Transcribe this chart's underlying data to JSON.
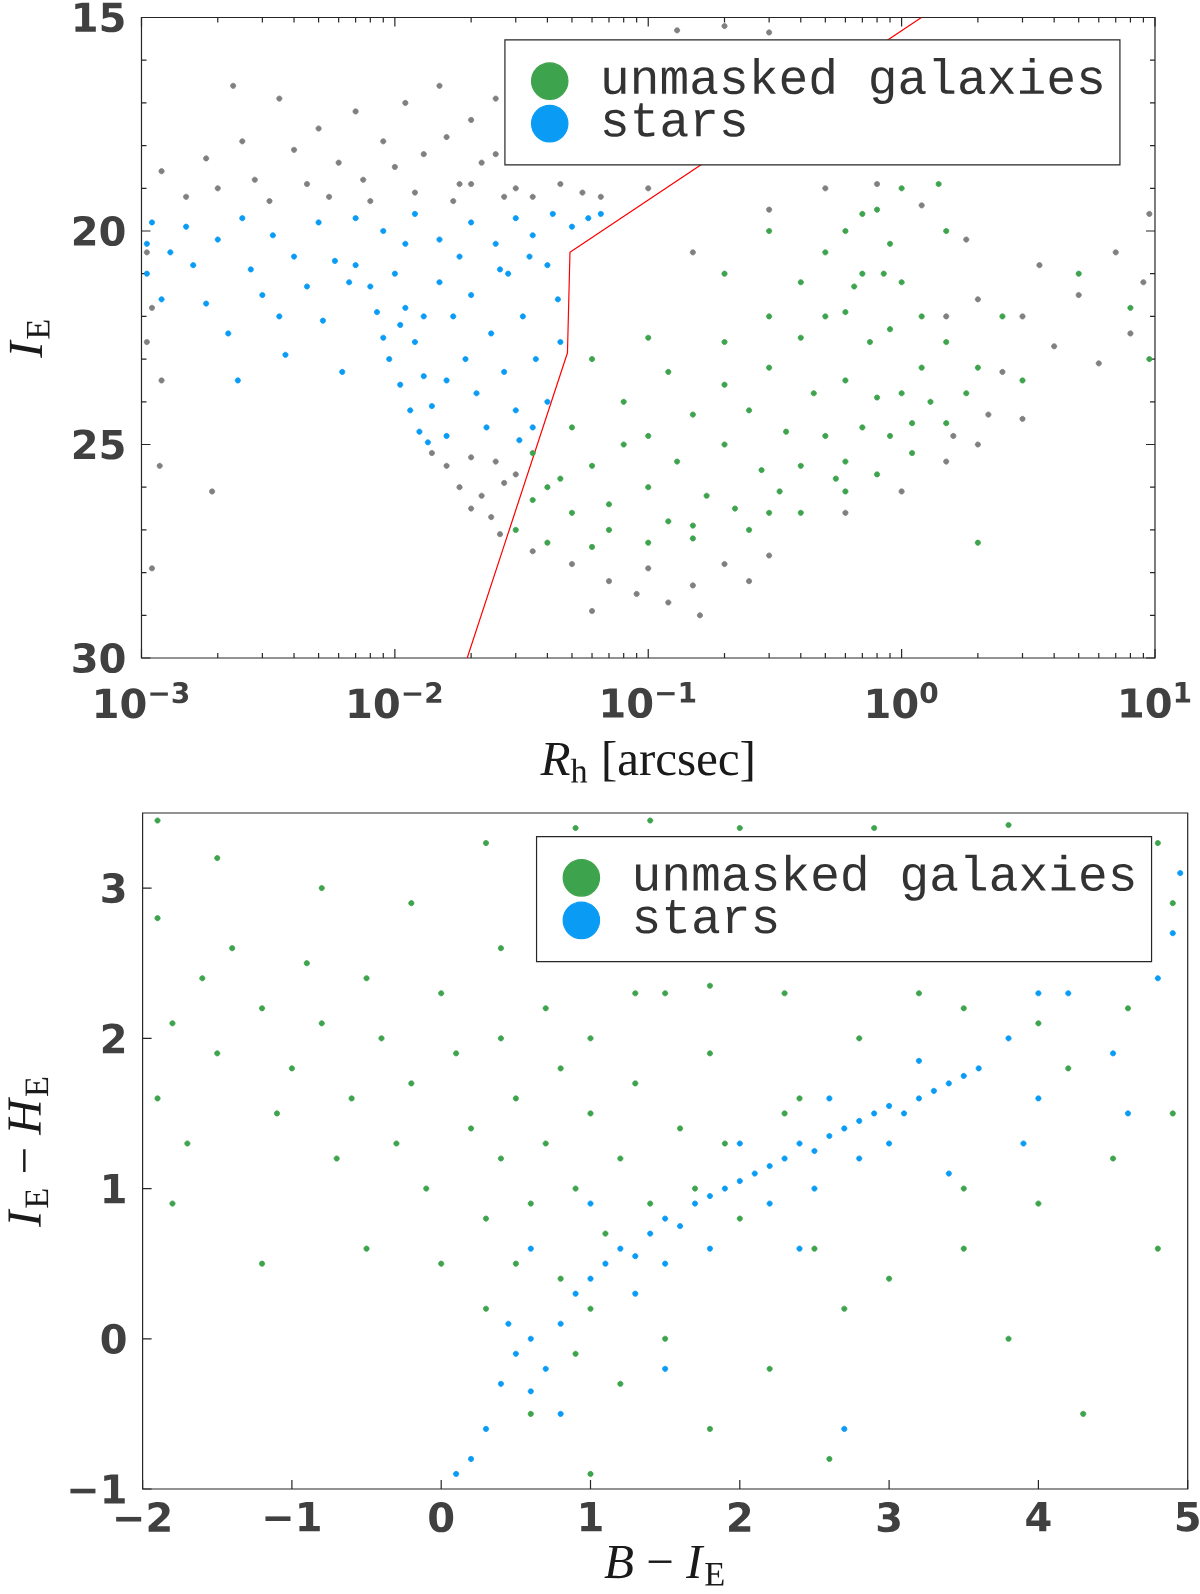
{
  "chart_data": [
    {
      "type": "scatter",
      "xlabel": "*R*$_{h}$ [arcsec]",
      "ylabel": "*I*$_{E}$",
      "log": "x",
      "xlim": [
        0.001,
        10
      ],
      "ylim": [
        30,
        15
      ],
      "xticks": [
        {
          "value": 0.001,
          "label": "10$^{−3}$"
        },
        {
          "value": 0.01,
          "label": "10$^{−2}$"
        },
        {
          "value": 0.1,
          "label": "10$^{−1}$"
        },
        {
          "value": 1,
          "label": "10$^{0}$"
        },
        {
          "value": 10,
          "label": "10$^{1}$"
        }
      ],
      "yticks": [
        15,
        20,
        25,
        30
      ],
      "legend": "top right",
      "series": [
        {
          "color": "#808080",
          "marker": "circle",
          "x": [
            0.0012,
            0.0015,
            0.0018,
            0.002,
            0.0023,
            0.0025,
            0.0028,
            0.0032,
            0.0035,
            0.004,
            0.0045,
            0.005,
            0.0055,
            0.006,
            0.007,
            0.0075,
            0.008,
            0.009,
            0.01,
            0.011,
            0.012,
            0.013,
            0.015,
            0.016,
            0.017,
            0.018,
            0.02,
            0.02,
            0.022,
            0.025,
            0.025,
            0.027,
            0.03,
            0.035,
            0.045,
            0.055,
            0.065,
            0.13,
            0.2,
            0.3,
            0.00105,
            0.0011,
            0.00105,
            0.0012,
            0.00118,
            0.0019,
            0.0011,
            0.014,
            0.016,
            0.02,
            0.025,
            0.018,
            0.022,
            0.027,
            0.03,
            0.024,
            0.026,
            0.02,
            0.035,
            0.05,
            0.06,
            0.07,
            0.09,
            0.1,
            0.12,
            0.15,
            0.16,
            0.2,
            0.25,
            0.3,
            1.5,
            2,
            2.5,
            3,
            3.5,
            4,
            5,
            6,
            7,
            8,
            9,
            2.2,
            1.8,
            1.6,
            3,
            9.5,
            1.2,
            0.3,
            0.5,
            0.15,
            0.1,
            0.8,
            1.5,
            2.0,
            1.0,
            0.6
          ],
          "values": [
            18.6,
            19.2,
            18.3,
            19.0,
            16.6,
            17.9,
            18.8,
            19.3,
            16.9,
            18.1,
            18.9,
            17.6,
            19.2,
            18.4,
            17.2,
            18.8,
            19.3,
            17.9,
            18.5,
            17.0,
            19.1,
            18.2,
            16.6,
            17.8,
            19.3,
            18.9,
            17.4,
            18.9,
            18.4,
            16.9,
            18.2,
            19.2,
            19.0,
            19.2,
            18.9,
            19.1,
            19.2,
            15.3,
            15.2,
            15.35,
            20.5,
            21.8,
            22.6,
            23.5,
            25.5,
            26.1,
            27.9,
            25.2,
            25.5,
            25.3,
            25.4,
            26.0,
            26.2,
            25.9,
            25.7,
            26.7,
            27.1,
            26.5,
            27.5,
            27.8,
            28.9,
            28.2,
            28.5,
            27.9,
            28.7,
            28.3,
            29.0,
            27.8,
            28.2,
            27.6,
            22.0,
            21.6,
            23.3,
            22.0,
            20.8,
            22.7,
            21.5,
            23.1,
            20.5,
            22.4,
            21.2,
            24.3,
            20.2,
            24.8,
            24.4,
            19.6,
            19.4,
            19.5,
            19.0,
            20.5,
            19.0,
            18.9,
            25.4,
            25.0,
            26.1,
            26.6
          ]
        },
        {
          "name": "unmasked galaxies",
          "color": "#3ea34d",
          "marker": "circle",
          "x": [
            0.03,
            0.04,
            0.06,
            0.1,
            0.15,
            0.25,
            0.4,
            0.6,
            0.8,
            1.1,
            1.5,
            1.8,
            2,
            0.035,
            0.05,
            0.08,
            0.12,
            0.2,
            0.3,
            0.4,
            0.5,
            0.6,
            0.7,
            0.8,
            0.9,
            1.0,
            1.2,
            1.5,
            0.04,
            0.05,
            0.06,
            0.07,
            0.08,
            0.1,
            0.1,
            0.12,
            0.13,
            0.15,
            0.17,
            0.2,
            0.2,
            0.22,
            0.25,
            0.28,
            0.3,
            0.33,
            0.35,
            0.4,
            0.4,
            0.45,
            0.5,
            0.5,
            0.55,
            0.6,
            0.65,
            0.7,
            0.75,
            0.8,
            0.9,
            0.9,
            1.0,
            1.1,
            1.2,
            1.3,
            0.07,
            0.15,
            0.3,
            0.6,
            0.045,
            0.035,
            0.7,
            0.6,
            0.85,
            0.3,
            0.2,
            0.1,
            0.06,
            2.5,
            3,
            5,
            8,
            9.5,
            1.5,
            1.0,
            2.0,
            1.4
          ],
          "values": [
            27.0,
            27.3,
            27.4,
            27.3,
            27.2,
            27.0,
            26.6,
            26.1,
            25.7,
            25.2,
            24.5,
            23.8,
            23.2,
            25.2,
            24.6,
            24.0,
            23.3,
            22.6,
            22.0,
            21.2,
            20.5,
            20.0,
            19.6,
            19.5,
            20.3,
            21.2,
            22.0,
            22.6,
            26.0,
            26.6,
            25.5,
            26.4,
            25.0,
            26.0,
            24.8,
            26.8,
            25.4,
            24.3,
            26.2,
            25.0,
            23.6,
            26.5,
            24.2,
            25.6,
            23.2,
            26.1,
            24.7,
            22.5,
            25.5,
            23.8,
            24.8,
            22.0,
            25.8,
            23.5,
            21.3,
            24.6,
            22.6,
            23.9,
            24.8,
            22.3,
            23.8,
            24.5,
            23.2,
            24.0,
            27.0,
            26.9,
            26.6,
            25.4,
            25.8,
            26.3,
            21.0,
            21.9,
            21.0,
            20.0,
            21.0,
            22.5,
            23.0,
            22.0,
            23.5,
            21.0,
            21.8,
            23.0,
            20.0,
            19.0,
            27.3,
            18.9
          ]
        },
        {
          "name": "stars",
          "color": "#0a9cf5",
          "marker": "circle",
          "x": [
            0.00105,
            0.00105,
            0.0011,
            0.0012,
            0.0013,
            0.0015,
            0.0016,
            0.0018,
            0.002,
            0.0022,
            0.0025,
            0.0027,
            0.003,
            0.0033,
            0.0037,
            0.004,
            0.0045,
            0.005,
            0.0052,
            0.0058,
            0.0062,
            0.0066,
            0.0024,
            0.0035,
            0.007,
            0.009,
            0.012,
            0.015,
            0.02,
            0.025,
            0.03,
            0.035,
            0.042,
            0.05,
            0.058,
            0.065,
            0.007,
            0.008,
            0.0085,
            0.009,
            0.0095,
            0.0105,
            0.0115,
            0.0125,
            0.0135,
            0.01,
            0.011,
            0.012,
            0.013,
            0.014,
            0.016,
            0.015,
            0.017,
            0.019,
            0.021,
            0.023,
            0.02,
            0.024,
            0.027,
            0.03,
            0.031,
            0.028,
            0.032,
            0.036,
            0.04,
            0.04,
            0.044,
            0.045,
            0.035,
            0.011,
            0.018,
            0.026,
            0.034,
            0.013,
            0.016,
            0.0105
          ],
          "values": [
            20.3,
            21.0,
            19.8,
            21.6,
            20.5,
            19.9,
            20.8,
            21.7,
            20.2,
            22.4,
            19.7,
            20.9,
            21.5,
            20.1,
            22.9,
            20.6,
            21.3,
            19.8,
            22.1,
            20.7,
            23.3,
            21.2,
            23.5,
            22.0,
            19.7,
            20.0,
            19.6,
            20.2,
            19.8,
            20.3,
            19.7,
            20.1,
            19.6,
            19.9,
            19.7,
            19.6,
            20.8,
            21.3,
            21.9,
            22.5,
            23.0,
            23.6,
            24.2,
            24.7,
            24.95,
            21.0,
            21.8,
            22.6,
            23.4,
            24.1,
            24.8,
            21.2,
            22.0,
            23.0,
            23.8,
            24.6,
            21.5,
            22.4,
            23.3,
            24.2,
            24.9,
            21.0,
            22.0,
            23.0,
            24.0,
            20.8,
            21.6,
            22.6,
            24.6,
            20.3,
            20.6,
            20.9,
            20.6,
            22.0,
            23.5,
            22.2
          ]
        },
        {
          "type": "line",
          "color": "#ff0000",
          "x": [
            0.0193,
            0.048,
            0.0491,
            1.197
          ],
          "values": [
            30,
            22.85,
            20.5,
            15
          ]
        }
      ]
    },
    {
      "type": "scatter",
      "xlabel": "*B* − *I*$_{E}$",
      "ylabel": "*I*$_{E}$ − *H*$_{E}$",
      "xlim": [
        -2,
        5
      ],
      "ylim": [
        -1,
        3.5
      ],
      "xticks": [
        {
          "value": -2,
          "label": "−2"
        },
        {
          "value": -1,
          "label": "−1"
        },
        0,
        1,
        2,
        3,
        4,
        5
      ],
      "yticks": [
        {
          "value": -1,
          "label": "−1"
        },
        0,
        1,
        2,
        3
      ],
      "legend": "top right",
      "marker": "circle",
      "series": [
        {
          "name": "unmasked galaxies",
          "color": "#3ea34d",
          "x": [
            0.2,
            0.4,
            0.5,
            0.6,
            0.7,
            0.8,
            0.9,
            1.0,
            1.1,
            1.2,
            1.3,
            1.4,
            0.3,
            0.5,
            0.8,
            1.0,
            0.1,
            0.4,
            0.7,
            1.0,
            1.3,
            1.6,
            1.7,
            1.9,
            2.0,
            2.3,
            2.4,
            1.8,
            1.5,
            0.4,
            -0.2,
            -0.4,
            -0.6,
            -0.8,
            -1.0,
            -1.2,
            -1.5,
            -1.8,
            -1.9,
            -1.4,
            -0.9,
            -0.5,
            -0.3,
            -0.1,
            0.0,
            -0.7,
            -1.1,
            -1.6,
            -1.9,
            -1.7,
            -1.5,
            -0.8,
            -0.2,
            0.3,
            0.9,
            1.4,
            2.0,
            3.2,
            3.8,
            4.9,
            4.8,
            2.9,
            -1.9,
            1.8,
            2.3,
            2.8,
            3.5,
            4.0,
            4.6,
            2.5,
            3.0,
            3.5,
            4.0,
            4.5,
            4.9,
            3.5,
            2.7,
            3.8,
            2.2,
            1.5,
            1.2,
            0.6,
            0.3,
            0.0,
            -0.5,
            -1.2,
            -1.8,
            1.8,
            2.6,
            4.3,
            1.0,
            0.9,
            4.2,
            4.8
          ],
          "values": [
            1.4,
            1.2,
            1.6,
            0.9,
            1.3,
            1.8,
            1.0,
            1.5,
            0.7,
            1.2,
            1.7,
            0.9,
            0.8,
            0.5,
            0.4,
            0.2,
            1.9,
            2.0,
            2.2,
            2.0,
            2.3,
            1.4,
            1.0,
            1.3,
            0.8,
            1.5,
            1.6,
            1.9,
            2.3,
            2.6,
            1.7,
            2.0,
            1.6,
            2.1,
            1.8,
            2.2,
            1.9,
            2.1,
            1.6,
            2.6,
            2.5,
            2.4,
            1.3,
            1.0,
            2.3,
            1.2,
            1.5,
            2.4,
            2.8,
            1.3,
            3.2,
            3.0,
            2.9,
            3.3,
            3.4,
            3.45,
            3.4,
            2.3,
            3.42,
            2.9,
            3.3,
            3.4,
            3.45,
            2.35,
            2.3,
            2.0,
            2.2,
            2.1,
            2.2,
            0.6,
            0.4,
            0.6,
            0.9,
            1.2,
            1.5,
            1.0,
            0.2,
            0.0,
            -0.2,
            0.0,
            -0.3,
            -0.5,
            0.2,
            0.5,
            0.6,
            0.5,
            0.9,
            -0.6,
            -0.8,
            -0.5,
            -0.9,
            -0.1,
            1.8,
            0.6
          ]
        },
        {
          "name": "stars",
          "color": "#0a9cf5",
          "x": [
            0.5,
            0.6,
            0.7,
            0.8,
            0.9,
            1.0,
            1.1,
            1.2,
            1.3,
            1.4,
            1.5,
            1.6,
            1.7,
            1.8,
            1.9,
            2.0,
            2.1,
            2.2,
            2.3,
            2.4,
            2.5,
            2.6,
            2.7,
            2.8,
            2.9,
            3.0,
            3.1,
            3.2,
            3.3,
            3.4,
            3.5,
            3.6,
            2.2,
            2.5,
            2.8,
            3.0,
            1.5,
            1.8,
            2.0,
            2.6,
            3.2,
            0.4,
            0.6,
            0.45,
            3.8,
            4.0,
            4.2,
            4.5,
            4.8,
            4.9,
            4.6,
            4.0,
            3.9,
            0.1,
            0.3,
            0.2,
            0.8,
            1.5,
            2.7,
            1.3,
            2.4,
            3.4,
            4.95,
            0.6,
            1.0
          ],
          "values": [
            -0.1,
            0.0,
            -0.2,
            0.1,
            0.3,
            0.4,
            0.5,
            0.6,
            0.55,
            0.7,
            0.8,
            0.75,
            0.9,
            0.95,
            1.0,
            1.05,
            1.1,
            1.15,
            1.2,
            1.3,
            1.25,
            1.35,
            1.4,
            1.45,
            1.5,
            1.55,
            1.5,
            1.6,
            1.65,
            1.7,
            1.75,
            1.8,
            0.9,
            1.0,
            1.2,
            1.3,
            0.5,
            0.6,
            1.3,
            1.6,
            1.85,
            -0.3,
            -0.35,
            0.1,
            2.0,
            1.6,
            2.3,
            1.9,
            2.4,
            2.7,
            1.5,
            2.3,
            1.3,
            -0.9,
            -0.6,
            -0.8,
            -0.5,
            -0.2,
            -0.6,
            0.3,
            0.6,
            1.1,
            3.1,
            0.6,
            0.9
          ]
        }
      ]
    }
  ]
}
